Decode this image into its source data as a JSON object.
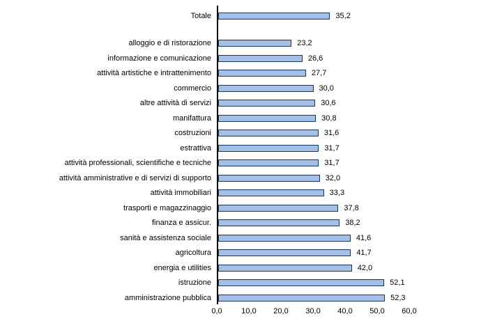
{
  "chart_data": {
    "type": "bar",
    "orientation": "horizontal",
    "title": "",
    "xlabel": "",
    "ylabel": "",
    "xlim": [
      0,
      60
    ],
    "grid": false,
    "legend": "none",
    "x_ticks": [
      "0,0",
      "10,0",
      "20,0",
      "30,0",
      "40,0",
      "50,0",
      "60,0"
    ],
    "x_tick_values": [
      0,
      10,
      20,
      30,
      40,
      50,
      60
    ],
    "categories": [
      "Totale",
      "alloggio e di ristorazione",
      "informazione e comunicazione",
      "attività artistiche e intrattenimento",
      "commercio",
      "altre attività di servizi",
      "manifattura",
      "costruzioni",
      "estrattiva",
      "attività professionali, scientifiche e tecniche",
      "attività amministrative e di servizi di supporto",
      "attività immobiliari",
      "trasporti e magazzinaggio",
      "finanza e assicur.",
      "sanità e assistenza sociale",
      "agricoltura",
      "energia e utilities",
      "istruzione",
      "amministrazione pubblica"
    ],
    "values": [
      35.2,
      23.2,
      26.6,
      27.7,
      30.0,
      30.6,
      30.8,
      31.6,
      31.7,
      31.7,
      32.0,
      33.3,
      37.8,
      38.2,
      41.6,
      41.7,
      42.0,
      52.1,
      52.3
    ],
    "value_labels": [
      "35,2",
      "23,2",
      "26,6",
      "27,7",
      "30,0",
      "30,6",
      "30,8",
      "31,6",
      "31,7",
      "31,7",
      "32,0",
      "33,3",
      "37,8",
      "38,2",
      "41,6",
      "41,7",
      "42,0",
      "52,1",
      "52,3"
    ],
    "bar_fill_color": "#A5BFE7",
    "bar_border_color": "#17365D",
    "axis_color": "#000000",
    "text_color": "#000000",
    "background_color": "#FFFFFF",
    "separate_first_bar": true
  }
}
